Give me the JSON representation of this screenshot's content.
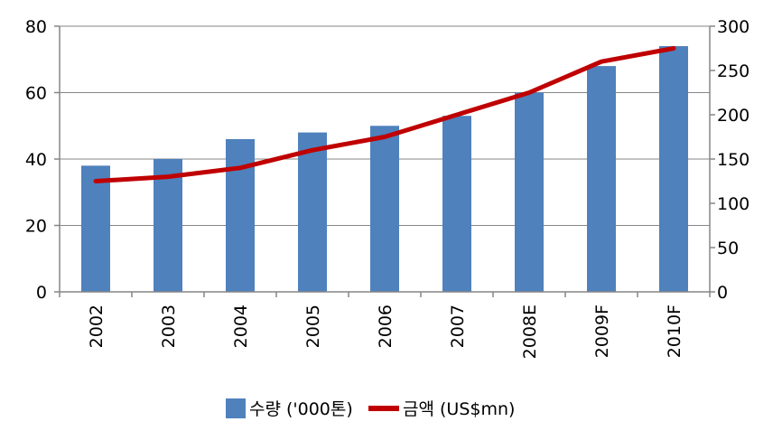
{
  "chart_data": {
    "type": "bar",
    "categories": [
      "2002",
      "2003",
      "2004",
      "2005",
      "2006",
      "2007",
      "2008E",
      "2009F",
      "2010F"
    ],
    "series": [
      {
        "name": "수량 ('000톤)",
        "type": "bar",
        "axis": "left",
        "color": "#4F81BD",
        "values": [
          38,
          40,
          46,
          48,
          50,
          53,
          60,
          68,
          74
        ]
      },
      {
        "name": "금액 (US$mn)",
        "type": "line",
        "axis": "right",
        "color": "#C00000",
        "values": [
          125,
          130,
          140,
          160,
          175,
          200,
          225,
          260,
          275
        ]
      }
    ],
    "y_left": {
      "ylim": [
        0,
        80
      ],
      "ticks": [
        "0",
        "20",
        "40",
        "60",
        "80"
      ]
    },
    "y_right": {
      "ylim": [
        0,
        300
      ],
      "ticks": [
        "0",
        "50",
        "100",
        "150",
        "200",
        "250",
        "300"
      ]
    },
    "grid": "horizontal",
    "legend_position": "bottom"
  }
}
